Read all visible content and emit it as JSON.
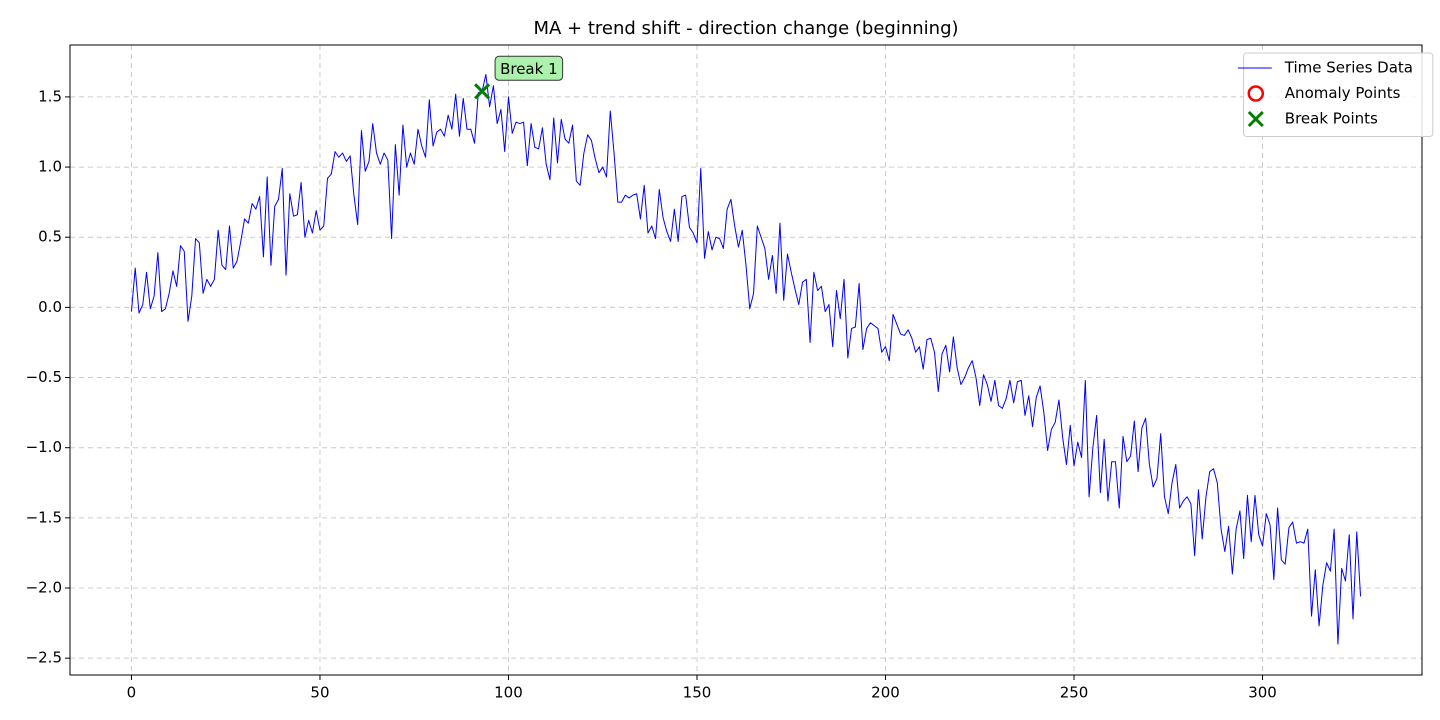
{
  "chart_data": {
    "type": "line",
    "title": "MA + trend shift - direction change (beginning)",
    "series": [
      {
        "name": "Time Series Data",
        "color": "#0000ff",
        "x": [
          0,
          1,
          2,
          3,
          4,
          5,
          6,
          7,
          8,
          9,
          10,
          11,
          12,
          13,
          14,
          15,
          16,
          17,
          18,
          19,
          20,
          21,
          22,
          23,
          24,
          25,
          26,
          27,
          28,
          29,
          30,
          31,
          32,
          33,
          34,
          35,
          36,
          37,
          38,
          39,
          40,
          41,
          42,
          43,
          44,
          45,
          46,
          47,
          48,
          49,
          50,
          51,
          52,
          53,
          54,
          55,
          56,
          57,
          58,
          59,
          60,
          61,
          62,
          63,
          64,
          65,
          66,
          67,
          68,
          69,
          70,
          71,
          72,
          73,
          74,
          75,
          76,
          77,
          78,
          79,
          80,
          81,
          82,
          83,
          84,
          85,
          86,
          87,
          88,
          89,
          90,
          91,
          92,
          93,
          94,
          95,
          96,
          97,
          98,
          99,
          100,
          101,
          102,
          103,
          104,
          105,
          106,
          107,
          108,
          109,
          110,
          111,
          112,
          113,
          114,
          115,
          116,
          117,
          118,
          119,
          120,
          121,
          122,
          123,
          124,
          125,
          126,
          127,
          128,
          129,
          130,
          131,
          132,
          133,
          134,
          135,
          136,
          137,
          138,
          139,
          140,
          141,
          142,
          143,
          144,
          145,
          146,
          147,
          148,
          149,
          150,
          151,
          152,
          153,
          154,
          155,
          156,
          157,
          158,
          159,
          160,
          161,
          162,
          163,
          164,
          165,
          166,
          167,
          168,
          169,
          170,
          171,
          172,
          173,
          174,
          175,
          176,
          177,
          178,
          179,
          180,
          181,
          182,
          183,
          184,
          185,
          186,
          187,
          188,
          189,
          190,
          191,
          192,
          193,
          194,
          195,
          196,
          197,
          198,
          199,
          200,
          201,
          202,
          203,
          204,
          205,
          206,
          207,
          208,
          209,
          210,
          211,
          212,
          213,
          214,
          215,
          216,
          217,
          218,
          219,
          220,
          221,
          222,
          223,
          224,
          225,
          226,
          227,
          228,
          229,
          230,
          231,
          232,
          233,
          234,
          235,
          236,
          237,
          238,
          239,
          240,
          241,
          242,
          243,
          244,
          245,
          246,
          247,
          248,
          249,
          250,
          251,
          252,
          253,
          254,
          255,
          256,
          257,
          258,
          259,
          260,
          261,
          262,
          263,
          264,
          265,
          266,
          267,
          268,
          269,
          270,
          271,
          272,
          273,
          274,
          275,
          276,
          277,
          278,
          279,
          280,
          281,
          282,
          283,
          284,
          285,
          286,
          287,
          288,
          289,
          290,
          291,
          292,
          293,
          294,
          295,
          296,
          297,
          298,
          299,
          300,
          301,
          302,
          303,
          304,
          305,
          306,
          307,
          308,
          309,
          310,
          311,
          312,
          313,
          314,
          315,
          316,
          317,
          318,
          319,
          320,
          321,
          322,
          323,
          324,
          325,
          326
        ],
        "values": [
          -0.03,
          0.28,
          -0.04,
          0.02,
          0.25,
          -0.01,
          0.08,
          0.39,
          -0.03,
          -0.01,
          0.1,
          0.26,
          0.15,
          0.44,
          0.4,
          -0.1,
          0.08,
          0.49,
          0.46,
          0.1,
          0.2,
          0.15,
          0.2,
          0.55,
          0.3,
          0.27,
          0.58,
          0.28,
          0.33,
          0.47,
          0.63,
          0.6,
          0.74,
          0.7,
          0.79,
          0.36,
          0.93,
          0.3,
          0.72,
          0.77,
          0.99,
          0.23,
          0.81,
          0.65,
          0.66,
          0.89,
          0.5,
          0.62,
          0.53,
          0.69,
          0.55,
          0.58,
          0.92,
          0.95,
          1.11,
          1.07,
          1.1,
          1.04,
          1.08,
          0.8,
          0.59,
          1.26,
          0.97,
          1.04,
          1.31,
          1.1,
          1.02,
          1.1,
          1.05,
          0.49,
          1.16,
          0.8,
          1.3,
          1.0,
          1.1,
          1.02,
          1.27,
          1.15,
          1.07,
          1.48,
          1.15,
          1.25,
          1.27,
          1.22,
          1.37,
          1.27,
          1.52,
          1.22,
          1.49,
          1.27,
          1.27,
          1.17,
          1.53,
          1.54,
          1.66,
          1.43,
          1.58,
          1.31,
          1.41,
          1.11,
          1.5,
          1.24,
          1.32,
          1.31,
          1.32,
          1.01,
          1.31,
          1.14,
          1.13,
          1.28,
          1.02,
          0.91,
          1.35,
          1.03,
          1.34,
          1.2,
          1.17,
          1.3,
          0.9,
          0.87,
          1.1,
          1.23,
          1.19,
          1.06,
          0.96,
          1.0,
          0.93,
          1.4,
          1.1,
          0.75,
          0.75,
          0.8,
          0.78,
          0.8,
          0.81,
          0.63,
          0.87,
          0.53,
          0.58,
          0.49,
          0.84,
          0.64,
          0.54,
          0.47,
          0.7,
          0.47,
          0.79,
          0.8,
          0.57,
          0.53,
          0.46,
          0.99,
          0.35,
          0.54,
          0.41,
          0.5,
          0.49,
          0.42,
          0.7,
          0.77,
          0.58,
          0.43,
          0.55,
          0.3,
          -0.01,
          0.1,
          0.58,
          0.5,
          0.42,
          0.2,
          0.37,
          0.1,
          0.6,
          0.05,
          0.38,
          0.25,
          0.13,
          0.02,
          0.18,
          0.2,
          -0.25,
          0.25,
          0.12,
          0.15,
          -0.03,
          0.02,
          -0.28,
          0.12,
          -0.08,
          0.2,
          -0.36,
          -0.15,
          -0.14,
          0.17,
          -0.3,
          -0.15,
          -0.11,
          -0.13,
          -0.15,
          -0.32,
          -0.28,
          -0.38,
          -0.05,
          -0.12,
          -0.19,
          -0.2,
          -0.16,
          -0.22,
          -0.32,
          -0.28,
          -0.44,
          -0.23,
          -0.22,
          -0.32,
          -0.6,
          -0.33,
          -0.27,
          -0.46,
          -0.21,
          -0.43,
          -0.55,
          -0.5,
          -0.43,
          -0.38,
          -0.5,
          -0.7,
          -0.48,
          -0.55,
          -0.67,
          -0.52,
          -0.7,
          -0.72,
          -0.65,
          -0.52,
          -0.68,
          -0.53,
          -0.52,
          -0.77,
          -0.63,
          -0.85,
          -0.64,
          -0.56,
          -0.75,
          -1.02,
          -0.87,
          -0.82,
          -0.66,
          -0.93,
          -1.12,
          -0.84,
          -1.13,
          -0.96,
          -1.07,
          -0.52,
          -1.35,
          -1.0,
          -0.77,
          -1.32,
          -0.94,
          -1.38,
          -1.1,
          -1.1,
          -1.43,
          -0.92,
          -1.1,
          -1.06,
          -0.81,
          -1.17,
          -0.86,
          -0.79,
          -1.12,
          -1.28,
          -1.22,
          -0.9,
          -1.35,
          -1.47,
          -1.25,
          -1.12,
          -1.43,
          -1.38,
          -1.35,
          -1.4,
          -1.77,
          -1.3,
          -1.65,
          -1.35,
          -1.17,
          -1.15,
          -1.25,
          -1.58,
          -1.74,
          -1.56,
          -1.9,
          -1.58,
          -1.45,
          -1.79,
          -1.34,
          -1.67,
          -1.34,
          -1.62,
          -1.7,
          -1.47,
          -1.55,
          -1.94,
          -1.43,
          -1.8,
          -1.83,
          -1.57,
          -1.53,
          -1.68,
          -1.67,
          -1.68,
          -1.58,
          -2.2,
          -1.87,
          -2.27,
          -1.98,
          -1.82,
          -1.88,
          -1.58,
          -2.4,
          -1.86,
          -1.95,
          -1.62,
          -2.22,
          -1.6,
          -2.06
        ]
      },
      {
        "name": "Anomaly Points",
        "color": "#ff0000",
        "marker": "o",
        "x": [],
        "values": []
      },
      {
        "name": "Break Points",
        "color": "#008000",
        "marker": "x",
        "x": [
          93
        ],
        "values": [
          1.54
        ]
      }
    ],
    "annotations": [
      {
        "text": "Break 1",
        "series": 2,
        "index": 0
      }
    ],
    "xlim": [
      -16.3,
      342.3
    ],
    "xticks": [
      0,
      50,
      100,
      150,
      200,
      250,
      300
    ],
    "ylim": [
      -2.62,
      1.87
    ],
    "yticks": [
      {
        "value": -2.5,
        "label": "−2.5"
      },
      {
        "value": -2.0,
        "label": "−2.0"
      },
      {
        "value": -1.5,
        "label": "−1.5"
      },
      {
        "value": -1.0,
        "label": "−1.0"
      },
      {
        "value": -0.5,
        "label": "−0.5"
      },
      {
        "value": 0,
        "label": "0.0"
      },
      0.5,
      {
        "value": 1,
        "label": "1.0"
      },
      1.5
    ],
    "grid": true,
    "legend": "upper right"
  }
}
